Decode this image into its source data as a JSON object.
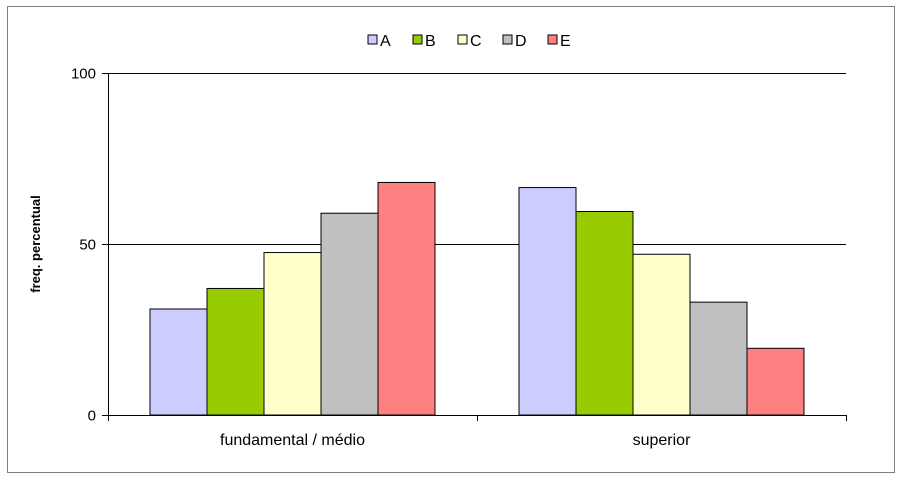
{
  "chart_data": {
    "type": "bar",
    "title": "",
    "xlabel": "",
    "ylabel": "freq. percentual",
    "ylim": [
      0,
      100
    ],
    "yticks": [
      0,
      50,
      100
    ],
    "grid": "horizontal",
    "legend_position": "top",
    "categories": [
      "fundamental / médio",
      "superior"
    ],
    "series": [
      {
        "name": "A",
        "color": "#CCCCFF",
        "values": [
          31,
          66.5
        ]
      },
      {
        "name": "B",
        "color": "#99CC00",
        "values": [
          37,
          59.5
        ]
      },
      {
        "name": "C",
        "color": "#FFFFCC",
        "values": [
          47.5,
          47
        ]
      },
      {
        "name": "D",
        "color": "#C0C0C0",
        "values": [
          59,
          33
        ]
      },
      {
        "name": "E",
        "color": "#FF8080",
        "values": [
          68,
          19.5
        ]
      }
    ]
  }
}
